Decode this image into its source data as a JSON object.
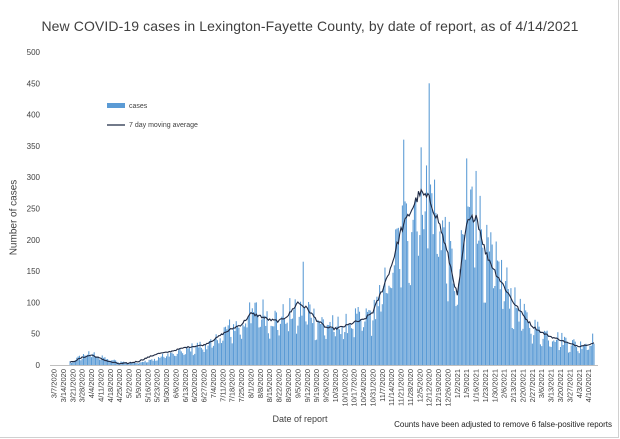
{
  "chart_data": {
    "type": "bar",
    "title": "New COVID-19 cases in Lexington-Fayette County, by date of report, as of 4/14/2021",
    "xlabel": "Date of report",
    "ylabel": "Number of cases",
    "ylim": [
      0,
      500
    ],
    "yticks": [
      "0",
      "50",
      "100",
      "150",
      "200",
      "250",
      "300",
      "350",
      "400",
      "450",
      "500"
    ],
    "grid": false,
    "legend_position": "upper-left",
    "footnote": "Counts have been adjusted to remove 6 false-positive reports",
    "start_date": "2020-03-07",
    "end_date": "2021-04-14",
    "x_tick_labels": [
      "3/7/2020",
      "3/14/2020",
      "3/21/2020",
      "3/28/2020",
      "4/4/2020",
      "4/11/2020",
      "4/18/2020",
      "4/25/2020",
      "5/2/2020",
      "5/9/2020",
      "5/16/2020",
      "5/23/2020",
      "5/30/2020",
      "6/6/2020",
      "6/13/2020",
      "6/20/2020",
      "6/27/2020",
      "7/4/2020",
      "7/11/2020",
      "7/18/2020",
      "7/25/2020",
      "8/1/2020",
      "8/8/2020",
      "8/15/2020",
      "8/22/2020",
      "8/29/2020",
      "9/5/2020",
      "9/12/2020",
      "9/19/2020",
      "9/26/2020",
      "10/3/2020",
      "10/10/2020",
      "10/17/2020",
      "10/24/2020",
      "10/31/2020",
      "11/7/2020",
      "11/14/2020",
      "11/21/2020",
      "11/28/2020",
      "12/5/2020",
      "12/12/2020",
      "12/19/2020",
      "12/26/2020",
      "1/2/2021",
      "1/9/2021",
      "1/16/2021",
      "1/23/2021",
      "1/30/2021",
      "2/6/2021",
      "2/13/2021",
      "2/20/2021",
      "2/27/2021",
      "3/6/2021",
      "3/13/2021",
      "3/20/2021",
      "3/27/2021",
      "4/3/2021",
      "4/10/2021"
    ],
    "series": [
      {
        "name": "cases",
        "kind": "bar",
        "color": "#5b9bd5",
        "points": [
          {
            "x": "2020-03-07",
            "y": 1
          },
          {
            "x": "2020-03-14",
            "y": 2
          },
          {
            "x": "2020-03-21",
            "y": 6
          },
          {
            "x": "2020-03-28",
            "y": 14
          },
          {
            "x": "2020-04-04",
            "y": 18
          },
          {
            "x": "2020-04-11",
            "y": 12
          },
          {
            "x": "2020-04-18",
            "y": 8
          },
          {
            "x": "2020-04-25",
            "y": 5
          },
          {
            "x": "2020-05-02",
            "y": 4
          },
          {
            "x": "2020-05-09",
            "y": 4
          },
          {
            "x": "2020-05-16",
            "y": 6
          },
          {
            "x": "2020-05-23",
            "y": 10
          },
          {
            "x": "2020-05-30",
            "y": 16
          },
          {
            "x": "2020-06-06",
            "y": 18
          },
          {
            "x": "2020-06-13",
            "y": 22
          },
          {
            "x": "2020-06-20",
            "y": 28
          },
          {
            "x": "2020-06-27",
            "y": 30
          },
          {
            "x": "2020-07-04",
            "y": 34
          },
          {
            "x": "2020-07-11",
            "y": 50
          },
          {
            "x": "2020-07-18",
            "y": 58
          },
          {
            "x": "2020-07-25",
            "y": 62
          },
          {
            "x": "2020-08-01",
            "y": 75
          },
          {
            "x": "2020-08-08",
            "y": 85
          },
          {
            "x": "2020-08-15",
            "y": 72
          },
          {
            "x": "2020-08-22",
            "y": 70
          },
          {
            "x": "2020-08-29",
            "y": 80
          },
          {
            "x": "2020-09-05",
            "y": 78
          },
          {
            "x": "2020-09-12",
            "y": 88
          },
          {
            "x": "2020-09-19",
            "y": 68
          },
          {
            "x": "2020-09-26",
            "y": 62
          },
          {
            "x": "2020-10-03",
            "y": 60
          },
          {
            "x": "2020-10-10",
            "y": 60
          },
          {
            "x": "2020-10-17",
            "y": 68
          },
          {
            "x": "2020-10-24",
            "y": 70
          },
          {
            "x": "2020-10-31",
            "y": 82
          },
          {
            "x": "2020-11-07",
            "y": 110
          },
          {
            "x": "2020-11-14",
            "y": 148
          },
          {
            "x": "2020-11-21",
            "y": 200
          },
          {
            "x": "2020-11-28",
            "y": 220
          },
          {
            "x": "2020-12-05",
            "y": 270
          },
          {
            "x": "2020-12-12",
            "y": 255
          },
          {
            "x": "2020-12-19",
            "y": 225
          },
          {
            "x": "2020-12-26",
            "y": 180
          },
          {
            "x": "2021-01-02",
            "y": 110
          },
          {
            "x": "2021-01-09",
            "y": 230
          },
          {
            "x": "2021-01-16",
            "y": 245
          },
          {
            "x": "2021-01-23",
            "y": 170
          },
          {
            "x": "2021-01-30",
            "y": 150
          },
          {
            "x": "2021-02-06",
            "y": 130
          },
          {
            "x": "2021-02-13",
            "y": 95
          },
          {
            "x": "2021-02-20",
            "y": 75
          },
          {
            "x": "2021-02-27",
            "y": 60
          },
          {
            "x": "2021-03-06",
            "y": 50
          },
          {
            "x": "2021-03-13",
            "y": 45
          },
          {
            "x": "2021-03-20",
            "y": 40
          },
          {
            "x": "2021-03-27",
            "y": 35
          },
          {
            "x": "2021-04-03",
            "y": 30
          },
          {
            "x": "2021-04-10",
            "y": 35
          },
          {
            "x": "2021-04-14",
            "y": 40
          }
        ],
        "peaks": [
          {
            "x": "2020-07-31",
            "y": 100
          },
          {
            "x": "2020-09-09",
            "y": 165
          },
          {
            "x": "2020-11-23",
            "y": 360
          },
          {
            "x": "2020-12-12",
            "y": 450
          },
          {
            "x": "2021-01-09",
            "y": 330
          },
          {
            "x": "2021-01-16",
            "y": 310
          }
        ]
      },
      {
        "name": "7 day moving average",
        "kind": "line",
        "color": "#1f2a44",
        "points": [
          {
            "x": "2020-03-07",
            "y": 0
          },
          {
            "x": "2020-03-21",
            "y": 5
          },
          {
            "x": "2020-03-28",
            "y": 12
          },
          {
            "x": "2020-04-04",
            "y": 16
          },
          {
            "x": "2020-04-11",
            "y": 10
          },
          {
            "x": "2020-04-18",
            "y": 5
          },
          {
            "x": "2020-04-25",
            "y": 2
          },
          {
            "x": "2020-05-02",
            "y": 3
          },
          {
            "x": "2020-05-09",
            "y": 6
          },
          {
            "x": "2020-05-16",
            "y": 12
          },
          {
            "x": "2020-05-23",
            "y": 18
          },
          {
            "x": "2020-05-30",
            "y": 20
          },
          {
            "x": "2020-06-06",
            "y": 24
          },
          {
            "x": "2020-06-13",
            "y": 28
          },
          {
            "x": "2020-06-20",
            "y": 30
          },
          {
            "x": "2020-06-27",
            "y": 32
          },
          {
            "x": "2020-07-04",
            "y": 40
          },
          {
            "x": "2020-07-11",
            "y": 50
          },
          {
            "x": "2020-07-18",
            "y": 58
          },
          {
            "x": "2020-07-25",
            "y": 65
          },
          {
            "x": "2020-08-01",
            "y": 82
          },
          {
            "x": "2020-08-08",
            "y": 78
          },
          {
            "x": "2020-08-15",
            "y": 72
          },
          {
            "x": "2020-08-22",
            "y": 70
          },
          {
            "x": "2020-08-29",
            "y": 80
          },
          {
            "x": "2020-09-05",
            "y": 100
          },
          {
            "x": "2020-09-12",
            "y": 90
          },
          {
            "x": "2020-09-19",
            "y": 72
          },
          {
            "x": "2020-09-26",
            "y": 60
          },
          {
            "x": "2020-10-03",
            "y": 58
          },
          {
            "x": "2020-10-10",
            "y": 62
          },
          {
            "x": "2020-10-17",
            "y": 68
          },
          {
            "x": "2020-10-24",
            "y": 72
          },
          {
            "x": "2020-10-31",
            "y": 85
          },
          {
            "x": "2020-11-07",
            "y": 120
          },
          {
            "x": "2020-11-14",
            "y": 160
          },
          {
            "x": "2020-11-21",
            "y": 215
          },
          {
            "x": "2020-11-28",
            "y": 245
          },
          {
            "x": "2020-12-05",
            "y": 275
          },
          {
            "x": "2020-12-12",
            "y": 265
          },
          {
            "x": "2020-12-19",
            "y": 230
          },
          {
            "x": "2020-12-26",
            "y": 175
          },
          {
            "x": "2021-01-02",
            "y": 110
          },
          {
            "x": "2021-01-09",
            "y": 225
          },
          {
            "x": "2021-01-16",
            "y": 240
          },
          {
            "x": "2021-01-23",
            "y": 180
          },
          {
            "x": "2021-01-30",
            "y": 150
          },
          {
            "x": "2021-02-06",
            "y": 125
          },
          {
            "x": "2021-02-13",
            "y": 100
          },
          {
            "x": "2021-02-20",
            "y": 80
          },
          {
            "x": "2021-02-27",
            "y": 62
          },
          {
            "x": "2021-03-06",
            "y": 52
          },
          {
            "x": "2021-03-13",
            "y": 45
          },
          {
            "x": "2021-03-20",
            "y": 40
          },
          {
            "x": "2021-03-27",
            "y": 34
          },
          {
            "x": "2021-04-03",
            "y": 30
          },
          {
            "x": "2021-04-10",
            "y": 33
          },
          {
            "x": "2021-04-14",
            "y": 35
          }
        ]
      }
    ]
  }
}
